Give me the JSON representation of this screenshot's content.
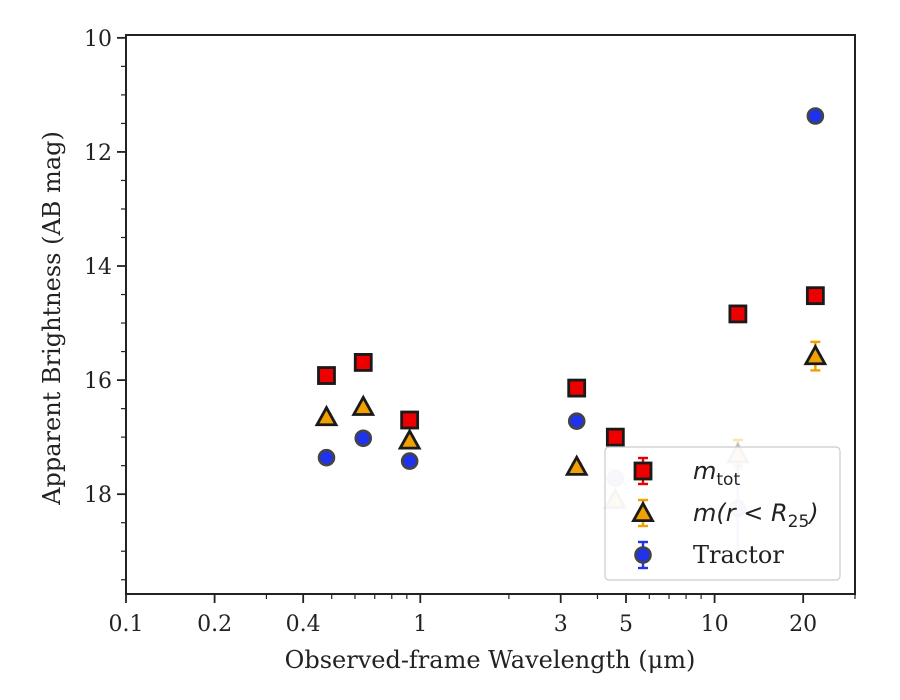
{
  "chart_data": {
    "type": "scatter",
    "xlabel": "Observed-frame Wavelength (μm)",
    "ylabel": "Apparent Brightness (AB mag)",
    "xscale": "log",
    "xlim": [
      0.1,
      30
    ],
    "ylim": [
      19.75,
      9.95
    ],
    "y_inverted": true,
    "grid": false,
    "legend_position": "lower-right",
    "x_ticks": [
      0.1,
      0.2,
      0.4,
      1,
      3,
      5,
      10,
      20
    ],
    "x_tick_labels": [
      "0.1",
      "0.2",
      "0.4",
      "1",
      "3",
      "5",
      "10",
      "20"
    ],
    "y_ticks": [
      10,
      12,
      14,
      16,
      18
    ],
    "y_tick_labels": [
      "10",
      "12",
      "14",
      "16",
      "18"
    ],
    "series": [
      {
        "name": "m_tot",
        "legend_label": {
          "main": "m",
          "sub": "tot",
          "tail": ""
        },
        "marker": "square",
        "face_color": "#ee0000",
        "edge_color": "#1a1a1a",
        "error_color": "#ee0000",
        "points": [
          {
            "x": 0.48,
            "y": 15.92,
            "err": 0.05
          },
          {
            "x": 0.64,
            "y": 15.69,
            "err": 0.05
          },
          {
            "x": 0.92,
            "y": 16.7,
            "err": 0.05
          },
          {
            "x": 3.4,
            "y": 16.14,
            "err": 0.05
          },
          {
            "x": 4.6,
            "y": 17.0,
            "err": 0.06
          },
          {
            "x": 12.0,
            "y": 14.84,
            "err": 0.06
          },
          {
            "x": 22.0,
            "y": 14.52,
            "err": 0.06
          }
        ]
      },
      {
        "name": "m(r < R25)",
        "legend_label": {
          "main": "m(r < R",
          "sub": "25",
          "tail": ")"
        },
        "marker": "triangle",
        "face_color": "#f0a000",
        "edge_color": "#1a1a1a",
        "error_color": "#f0a000",
        "points": [
          {
            "x": 0.48,
            "y": 16.65,
            "err": 0.05
          },
          {
            "x": 0.64,
            "y": 16.47,
            "err": 0.05
          },
          {
            "x": 0.92,
            "y": 17.06,
            "err": 0.05
          },
          {
            "x": 3.4,
            "y": 17.52,
            "err": 0.06
          },
          {
            "x": 4.6,
            "y": 18.1,
            "err": 0.08,
            "faded": true
          },
          {
            "x": 12.0,
            "y": 17.3,
            "err": 0.25,
            "faded": true
          },
          {
            "x": 22.0,
            "y": 15.58,
            "err": 0.25
          }
        ]
      },
      {
        "name": "Tractor",
        "legend_label": {
          "main": "Tractor",
          "sub": "",
          "tail": ""
        },
        "marker": "circle",
        "face_color": "#1f33ee",
        "edge_color": "#444444",
        "error_color": "#1f33ee",
        "points": [
          {
            "x": 0.48,
            "y": 17.36,
            "err": 0.05
          },
          {
            "x": 0.64,
            "y": 17.02,
            "err": 0.05
          },
          {
            "x": 0.92,
            "y": 17.42,
            "err": 0.05
          },
          {
            "x": 3.4,
            "y": 16.72,
            "err": 0.05
          },
          {
            "x": 4.6,
            "y": 17.72,
            "err": 0.06,
            "faded": true
          },
          {
            "x": 12.0,
            "y": 18.25,
            "err": 0.75,
            "faded": true
          },
          {
            "x": 22.0,
            "y": 11.37,
            "err": 0.05
          }
        ]
      }
    ]
  }
}
